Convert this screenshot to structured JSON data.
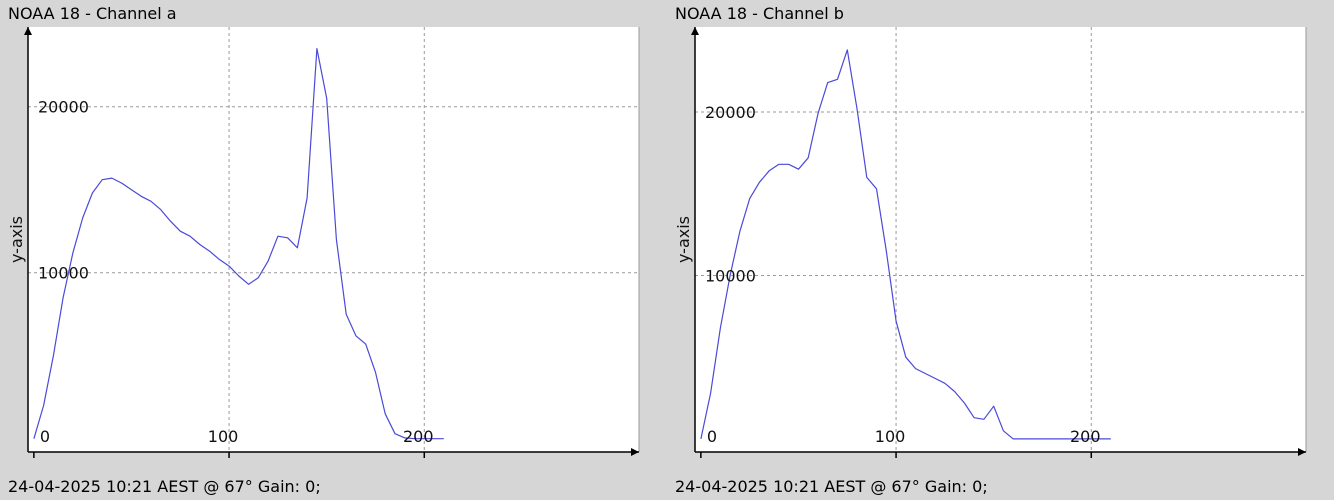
{
  "colors": {
    "background": "#d6d6d6",
    "plot_background": "#ffffff",
    "line": "#4a4ad8",
    "grid": "#9a9a9a",
    "axis": "#000000"
  },
  "panels": [
    {
      "title": "NOAA 18 - Channel a",
      "footer": "24-04-2025 10:21 AEST @ 67° Gain: 0;"
    },
    {
      "title": "NOAA 18 - Channel b",
      "footer": "24-04-2025 10:21 AEST @ 67° Gain: 0;"
    }
  ],
  "chart_data": [
    {
      "type": "line",
      "title": "NOAA 18 - Channel a",
      "ylabel": "y-axis",
      "xlabel": "",
      "xlim": [
        -3,
        310
      ],
      "ylim": [
        -800,
        24800
      ],
      "xticks": [
        0,
        100,
        200
      ],
      "xtick_labels": [
        "0",
        "100",
        "200"
      ],
      "yticks": [
        10000,
        20000
      ],
      "ytick_labels": [
        "10000",
        "20000"
      ],
      "grid": true,
      "series": [
        {
          "x": [
            0,
            5,
            10,
            15,
            20,
            25,
            30,
            35,
            40,
            45,
            50,
            55,
            60,
            65,
            70,
            75,
            80,
            85,
            90,
            95,
            100,
            105,
            110,
            115,
            120,
            125,
            130,
            135,
            140,
            145,
            150,
            155,
            160,
            165,
            170,
            175,
            180,
            185,
            190,
            195,
            200,
            205,
            210
          ],
          "y": [
            0,
            2000,
            5000,
            8500,
            11200,
            13300,
            14800,
            15600,
            15700,
            15400,
            15000,
            14600,
            14300,
            13800,
            13100,
            12500,
            12200,
            11700,
            11300,
            10800,
            10400,
            9800,
            9300,
            9700,
            10700,
            12200,
            12100,
            11500,
            14500,
            23500,
            20500,
            12000,
            7500,
            6200,
            5700,
            4000,
            1500,
            300,
            50,
            0,
            0,
            0,
            0
          ]
        }
      ]
    },
    {
      "type": "line",
      "title": "NOAA 18 - Channel b",
      "ylabel": "y-axis",
      "xlabel": "",
      "xlim": [
        -3,
        310
      ],
      "ylim": [
        -800,
        25200
      ],
      "xticks": [
        0,
        100,
        200
      ],
      "xtick_labels": [
        "0",
        "100",
        "200"
      ],
      "yticks": [
        10000,
        20000
      ],
      "ytick_labels": [
        "10000",
        "20000"
      ],
      "grid": true,
      "series": [
        {
          "x": [
            0,
            5,
            10,
            15,
            20,
            25,
            30,
            35,
            40,
            45,
            50,
            55,
            60,
            65,
            70,
            75,
            80,
            85,
            90,
            95,
            100,
            105,
            110,
            115,
            120,
            125,
            130,
            135,
            140,
            145,
            150,
            155,
            160,
            165,
            170,
            175,
            180,
            185,
            190,
            195,
            200,
            205,
            210
          ],
          "y": [
            0,
            2800,
            6800,
            10000,
            12700,
            14700,
            15700,
            16400,
            16800,
            16800,
            16500,
            17200,
            19900,
            21800,
            22000,
            23800,
            20200,
            16000,
            15300,
            11500,
            7200,
            5000,
            4300,
            4000,
            3700,
            3400,
            2900,
            2200,
            1300,
            1200,
            2000,
            500,
            0,
            0,
            0,
            0,
            0,
            0,
            0,
            0,
            0,
            0,
            0
          ]
        }
      ]
    }
  ]
}
